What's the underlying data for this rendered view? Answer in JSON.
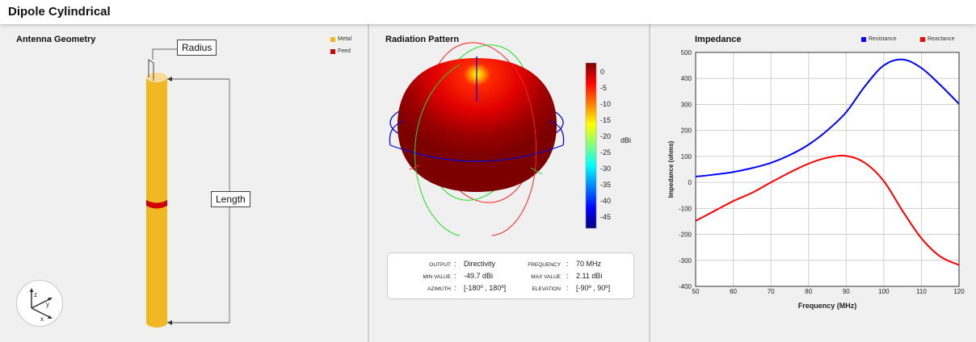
{
  "window": {
    "title": "Dipole Cylindrical"
  },
  "geometry_panel": {
    "title": "Antenna Geometry",
    "legend": [
      {
        "label": "Metal",
        "color": "#f0b823"
      },
      {
        "label": "Feed",
        "color": "#d00000"
      }
    ],
    "annotations": {
      "radius": "Radius",
      "length": "Length"
    },
    "axes": {
      "x": "x",
      "y": "y",
      "z": "z"
    }
  },
  "pattern_panel": {
    "title": "Radiation Pattern",
    "colorbar": {
      "unit": "dBi",
      "ticks": [
        "0",
        "-5",
        "-10",
        "-15",
        "-20",
        "-25",
        "-30",
        "-35",
        "-40",
        "-45"
      ]
    },
    "info": {
      "output_key": "OUTPUT",
      "output_val": "Directivity",
      "frequency_key": "FREQUENCY",
      "frequency_val": "70 MHz",
      "min_key": "MIN VALUE",
      "min_val": "-49.7 dBi",
      "max_key": "MAX VALUE",
      "max_val": "2.11 dBi",
      "azimuth_key": "AZIMUTH",
      "azimuth_val": "[-180º , 180º]",
      "elevation_key": "ELEVATION",
      "elevation_val": "[-90º , 90º]"
    }
  },
  "impedance_panel": {
    "title": "Impedance",
    "legend": [
      {
        "label": "Resistance",
        "color": "#0000ff"
      },
      {
        "label": "Reactance",
        "color": "#ff0000"
      }
    ]
  },
  "chart_data": {
    "type": "line",
    "title": "Impedance",
    "xlabel": "Frequency (MHz)",
    "ylabel": "Impedance (ohms)",
    "xlim": [
      50,
      120
    ],
    "ylim": [
      -400,
      500
    ],
    "xticks": [
      "50",
      "60",
      "70",
      "80",
      "90",
      "100",
      "110",
      "120"
    ],
    "yticks": [
      "500",
      "400",
      "300",
      "200",
      "100",
      "0",
      "-100",
      "-200",
      "-300",
      "-400"
    ],
    "grid": true,
    "legend_position": "top-right",
    "x": [
      50,
      55,
      60,
      65,
      70,
      75,
      80,
      85,
      90,
      95,
      100,
      105,
      110,
      115,
      120
    ],
    "series": [
      {
        "name": "Resistance",
        "color": "#0000ff",
        "values": [
          22,
          30,
          40,
          55,
          75,
          105,
          145,
          200,
          270,
          370,
          450,
          473,
          440,
          375,
          302
        ]
      },
      {
        "name": "Reactance",
        "color": "#ff0000",
        "values": [
          -148,
          -110,
          -72,
          -40,
          0,
          38,
          72,
          95,
          102,
          75,
          5,
          -110,
          -215,
          -285,
          -318
        ]
      }
    ]
  }
}
